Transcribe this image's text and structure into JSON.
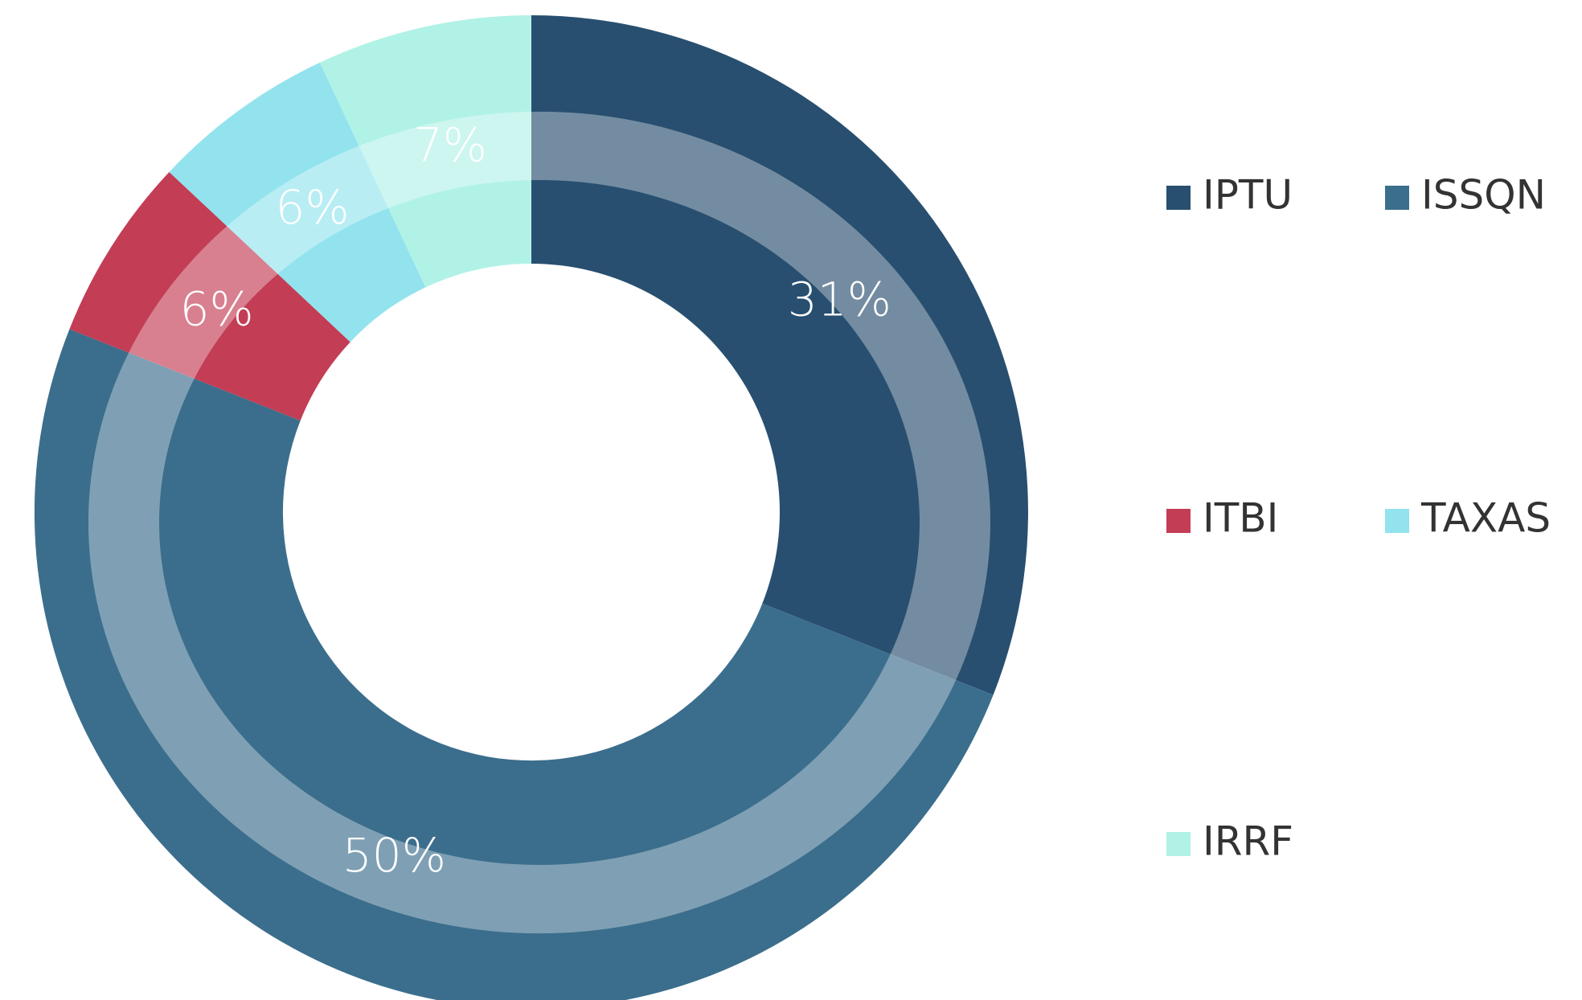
{
  "chart_data": {
    "type": "donut",
    "categories": [
      "IPTU",
      "ISSQN",
      "ITBI",
      "TAXAS",
      "IRRF"
    ],
    "values": [
      31,
      50,
      6,
      6,
      7
    ],
    "value_labels": [
      "31%",
      "50%",
      "6%",
      "6%",
      "7%"
    ],
    "colors": [
      "#284f6f",
      "#3b6e8c",
      "#c33d55",
      "#92e3ee",
      "#b1f2e6"
    ],
    "legend": "right"
  }
}
